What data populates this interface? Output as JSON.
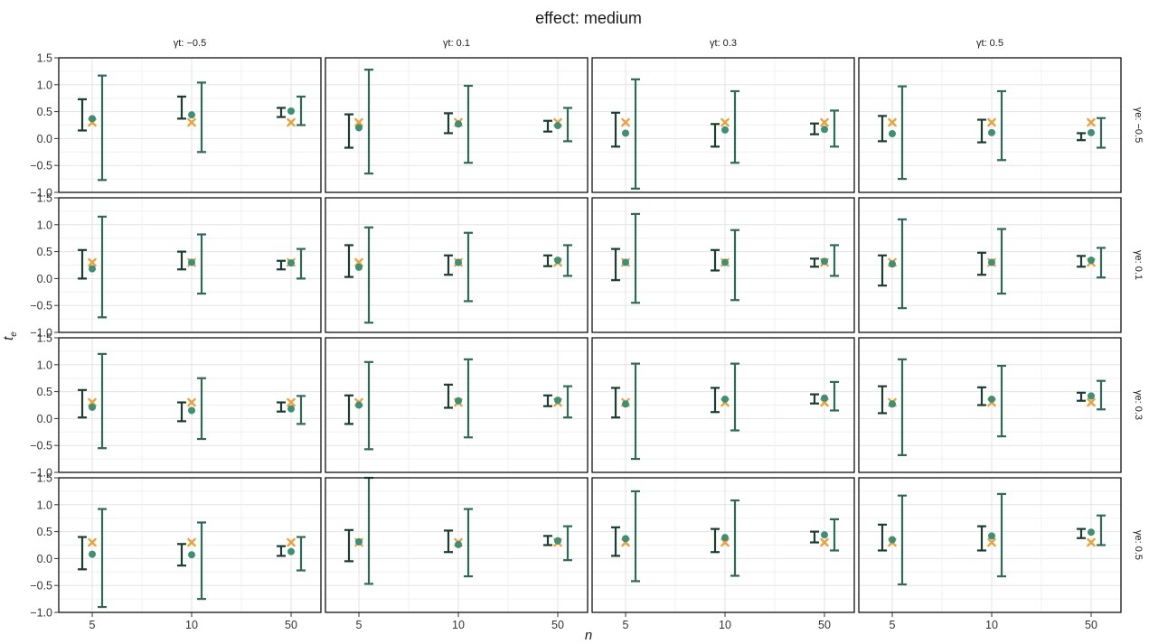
{
  "chart_data": {
    "type": "faceted interval plot",
    "title": "effect: medium",
    "xlabel": "n",
    "ylabel": "t_e",
    "x_categories": [
      "5",
      "10",
      "50"
    ],
    "ylim": [
      -1.0,
      1.5
    ],
    "y_ticks": [
      "1.5",
      "1.0",
      "0.5",
      "0.0",
      "-0.5",
      "-1.0"
    ],
    "grid": true,
    "colors": {
      "interval_short": "#1b3d30",
      "interval_long": "#2e6b55",
      "point": "#3f8f75",
      "truth_marker": "#e8a33d"
    },
    "col_strips": [
      "γt: −0.5",
      "γt: 0.1",
      "γt: 0.3",
      "γt: 0.5"
    ],
    "row_strips": [
      "γe: −0.5",
      "γe: 0.1",
      "γe: 0.3",
      "γe: 0.5"
    ],
    "truth_value": 0.3,
    "panels": [
      [
        [
          {
            "short": [
              0.15,
              0.73
            ],
            "point": 0.37,
            "long": [
              -0.77,
              1.17
            ]
          },
          {
            "short": [
              0.37,
              0.78
            ],
            "point": 0.44,
            "long": [
              -0.25,
              1.04
            ]
          },
          {
            "short": [
              0.4,
              0.57
            ],
            "point": 0.51,
            "long": [
              0.25,
              0.78
            ]
          }
        ],
        [
          {
            "short": [
              -0.17,
              0.45
            ],
            "point": 0.2,
            "long": [
              -0.65,
              1.28
            ]
          },
          {
            "short": [
              0.1,
              0.47
            ],
            "point": 0.27,
            "long": [
              -0.45,
              0.98
            ]
          },
          {
            "short": [
              0.13,
              0.33
            ],
            "point": 0.24,
            "long": [
              -0.05,
              0.57
            ]
          }
        ],
        [
          {
            "short": [
              -0.15,
              0.48
            ],
            "point": 0.1,
            "long": [
              -0.93,
              1.1
            ]
          },
          {
            "short": [
              -0.15,
              0.27
            ],
            "point": 0.16,
            "long": [
              -0.45,
              0.88
            ]
          },
          {
            "short": [
              0.08,
              0.28
            ],
            "point": 0.17,
            "long": [
              -0.15,
              0.52
            ]
          }
        ],
        [
          {
            "short": [
              -0.05,
              0.42
            ],
            "point": 0.09,
            "long": [
              -0.75,
              0.97
            ]
          },
          {
            "short": [
              -0.07,
              0.35
            ],
            "point": 0.11,
            "long": [
              -0.4,
              0.88
            ]
          },
          {
            "short": [
              -0.03,
              0.1
            ],
            "point": 0.11,
            "long": [
              -0.17,
              0.38
            ]
          }
        ]
      ],
      [
        [
          {
            "short": [
              0.0,
              0.53
            ],
            "point": 0.18,
            "long": [
              -0.72,
              1.15
            ]
          },
          {
            "short": [
              0.17,
              0.5
            ],
            "point": 0.3,
            "long": [
              -0.28,
              0.82
            ]
          },
          {
            "short": [
              0.17,
              0.33
            ],
            "point": 0.29,
            "long": [
              0.0,
              0.55
            ]
          }
        ],
        [
          {
            "short": [
              0.03,
              0.62
            ],
            "point": 0.21,
            "long": [
              -0.82,
              0.95
            ]
          },
          {
            "short": [
              0.07,
              0.43
            ],
            "point": 0.3,
            "long": [
              -0.42,
              0.85
            ]
          },
          {
            "short": [
              0.23,
              0.43
            ],
            "point": 0.34,
            "long": [
              0.05,
              0.62
            ]
          }
        ],
        [
          {
            "short": [
              -0.03,
              0.55
            ],
            "point": 0.3,
            "long": [
              -0.45,
              1.2
            ]
          },
          {
            "short": [
              0.15,
              0.53
            ],
            "point": 0.3,
            "long": [
              -0.4,
              0.9
            ]
          },
          {
            "short": [
              0.22,
              0.37
            ],
            "point": 0.32,
            "long": [
              0.05,
              0.62
            ]
          }
        ],
        [
          {
            "short": [
              -0.13,
              0.43
            ],
            "point": 0.27,
            "long": [
              -0.55,
              1.1
            ]
          },
          {
            "short": [
              0.07,
              0.48
            ],
            "point": 0.3,
            "long": [
              -0.28,
              0.92
            ]
          },
          {
            "short": [
              0.22,
              0.42
            ],
            "point": 0.34,
            "long": [
              0.02,
              0.57
            ]
          }
        ]
      ],
      [
        [
          {
            "short": [
              0.02,
              0.53
            ],
            "point": 0.21,
            "long": [
              -0.55,
              1.2
            ]
          },
          {
            "short": [
              -0.05,
              0.3
            ],
            "point": 0.15,
            "long": [
              -0.38,
              0.75
            ]
          },
          {
            "short": [
              0.13,
              0.3
            ],
            "point": 0.18,
            "long": [
              -0.1,
              0.42
            ]
          }
        ],
        [
          {
            "short": [
              -0.1,
              0.43
            ],
            "point": 0.25,
            "long": [
              -0.57,
              1.05
            ]
          },
          {
            "short": [
              0.2,
              0.63
            ],
            "point": 0.33,
            "long": [
              -0.35,
              1.1
            ]
          },
          {
            "short": [
              0.23,
              0.43
            ],
            "point": 0.34,
            "long": [
              0.02,
              0.6
            ]
          }
        ],
        [
          {
            "short": [
              0.02,
              0.57
            ],
            "point": 0.27,
            "long": [
              -0.75,
              1.02
            ]
          },
          {
            "short": [
              0.12,
              0.57
            ],
            "point": 0.36,
            "long": [
              -0.22,
              1.02
            ]
          },
          {
            "short": [
              0.28,
              0.45
            ],
            "point": 0.38,
            "long": [
              0.15,
              0.68
            ]
          }
        ],
        [
          {
            "short": [
              0.1,
              0.6
            ],
            "point": 0.27,
            "long": [
              -0.68,
              1.1
            ]
          },
          {
            "short": [
              0.25,
              0.58
            ],
            "point": 0.36,
            "long": [
              -0.33,
              0.98
            ]
          },
          {
            "short": [
              0.33,
              0.48
            ],
            "point": 0.42,
            "long": [
              0.17,
              0.7
            ]
          }
        ]
      ],
      [
        [
          {
            "short": [
              -0.2,
              0.4
            ],
            "point": 0.08,
            "long": [
              -0.9,
              0.92
            ]
          },
          {
            "short": [
              -0.13,
              0.27
            ],
            "point": 0.07,
            "long": [
              -0.75,
              0.67
            ]
          },
          {
            "short": [
              0.05,
              0.23
            ],
            "point": 0.13,
            "long": [
              -0.22,
              0.4
            ]
          }
        ],
        [
          {
            "short": [
              -0.05,
              0.53
            ],
            "point": 0.31,
            "long": [
              -0.47,
              1.5
            ]
          },
          {
            "short": [
              0.12,
              0.52
            ],
            "point": 0.26,
            "long": [
              -0.33,
              0.92
            ]
          },
          {
            "short": [
              0.25,
              0.42
            ],
            "point": 0.33,
            "long": [
              -0.03,
              0.6
            ]
          }
        ],
        [
          {
            "short": [
              0.05,
              0.58
            ],
            "point": 0.37,
            "long": [
              -0.42,
              1.25
            ]
          },
          {
            "short": [
              0.12,
              0.55
            ],
            "point": 0.39,
            "long": [
              -0.32,
              1.08
            ]
          },
          {
            "short": [
              0.3,
              0.5
            ],
            "point": 0.44,
            "long": [
              0.15,
              0.73
            ]
          }
        ],
        [
          {
            "short": [
              0.15,
              0.63
            ],
            "point": 0.35,
            "long": [
              -0.48,
              1.17
            ]
          },
          {
            "short": [
              0.15,
              0.6
            ],
            "point": 0.42,
            "long": [
              -0.33,
              1.2
            ]
          },
          {
            "short": [
              0.38,
              0.55
            ],
            "point": 0.49,
            "long": [
              0.25,
              0.8
            ]
          }
        ]
      ]
    ]
  }
}
